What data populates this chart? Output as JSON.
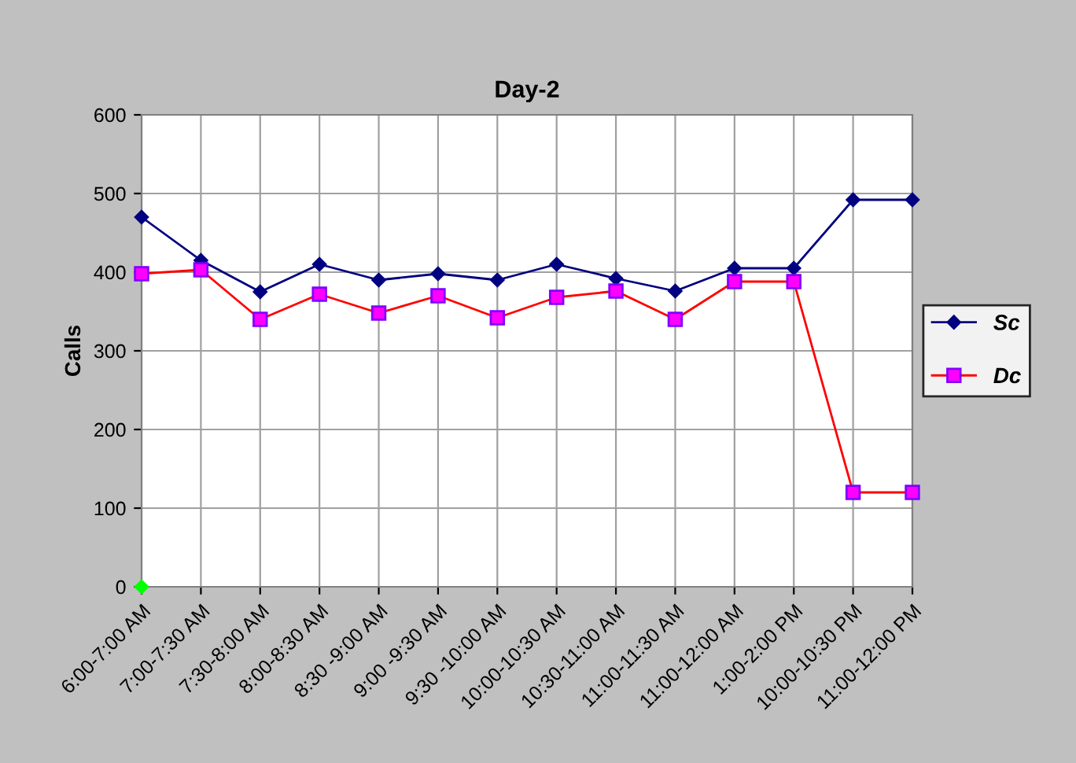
{
  "chart_data": {
    "type": "line",
    "title": "Day-2",
    "ylabel": "Calls",
    "categories": [
      "6:00-7:00 AM",
      "7:00-7:30 AM",
      "7:30-8:00 AM",
      "8:00-8:30 AM",
      "8:30 -9:00 AM",
      "9:00 -9:30 AM",
      "9:30 -10:00 AM",
      "10:00-10:30 AM",
      "10:30-11:00 AM",
      "11:00-11:30 AM",
      "11:00-12:00 AM",
      "1:00-2:00 PM",
      "10:00-10:30 PM",
      "11:00-12:00 PM"
    ],
    "series": [
      {
        "name": "Sc",
        "color": "#000080",
        "marker": "diamond",
        "values": [
          470,
          415,
          375,
          410,
          390,
          398,
          390,
          410,
          392,
          376,
          405,
          405,
          492,
          492
        ]
      },
      {
        "name": "Dc",
        "color": "#ff0000",
        "marker": "square",
        "values": [
          398,
          403,
          340,
          372,
          348,
          370,
          342,
          368,
          376,
          340,
          388,
          388,
          120,
          120
        ]
      },
      {
        "color": "#00ff00",
        "marker": "diamond",
        "values": [
          0,
          null,
          null,
          null,
          null,
          null,
          null,
          null,
          null,
          null,
          null,
          null,
          null,
          null
        ]
      }
    ],
    "ylim": [
      0,
      600
    ],
    "yticks": [
      0,
      100,
      200,
      300,
      400,
      500,
      600
    ],
    "grid": true,
    "legend": "right"
  }
}
